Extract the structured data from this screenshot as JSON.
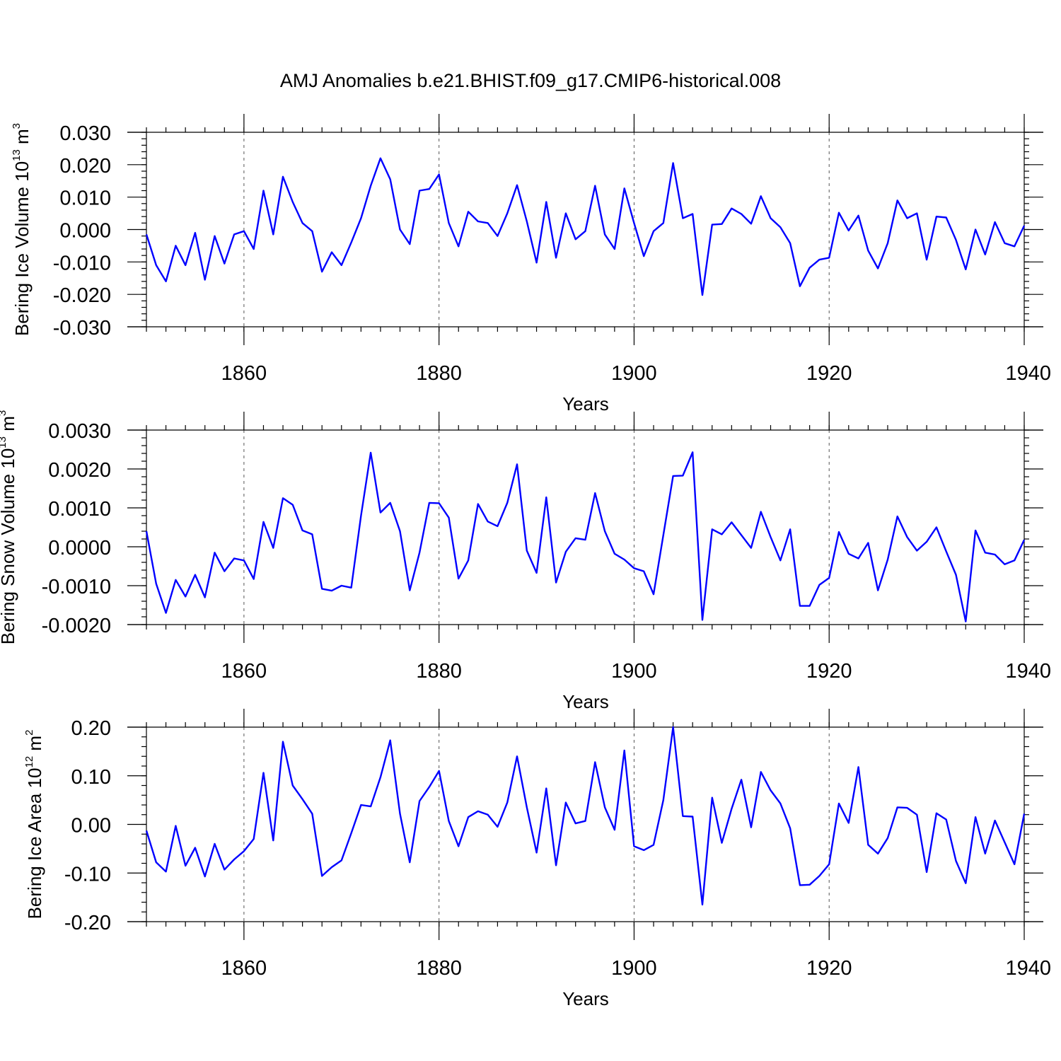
{
  "figure_title": "AMJ Anomalies b.e21.BHIST.f09_g17.CMIP6-historical.008",
  "line_color": "#0000ff",
  "chart_data": [
    {
      "type": "line",
      "title": "AMJ Anomalies b.e21.BHIST.f09_g17.CMIP6-historical.008",
      "ylabel_main": "Bering Ice Volume 10",
      "ylabel_exp": "13",
      "ylabel_unit": " m",
      "ylabel_unit_exp": "3",
      "xlabel": "Years",
      "xlim": [
        1850,
        1940
      ],
      "ylim": [
        -0.03,
        0.03
      ],
      "yticks": [
        -0.03,
        -0.02,
        -0.01,
        0.0,
        0.01,
        0.02,
        0.03
      ],
      "ytick_labels": [
        "-0.030",
        "-0.020",
        "-0.010",
        "0.000",
        "0.010",
        "0.020",
        "0.030"
      ],
      "yminor_step": 0.002,
      "xticks": [
        1860,
        1880,
        1900,
        1920,
        1940
      ],
      "xtick_labels": [
        "1860",
        "1880",
        "1900",
        "1920",
        "1940"
      ],
      "xminor_step": 2,
      "x_start": 1850,
      "x_step": 1,
      "values": [
        -0.0015,
        -0.011,
        -0.016,
        -0.005,
        -0.011,
        -0.001,
        -0.0155,
        -0.002,
        -0.0105,
        -0.0015,
        -0.0005,
        -0.006,
        0.012,
        -0.0015,
        0.0163,
        0.0085,
        0.002,
        -0.0005,
        -0.013,
        -0.007,
        -0.011,
        -0.004,
        0.0035,
        0.0135,
        0.022,
        0.0155,
        0.0,
        -0.0045,
        0.012,
        0.0125,
        0.017,
        0.002,
        -0.0052,
        0.0055,
        0.0025,
        0.002,
        -0.002,
        0.005,
        0.0137,
        0.0025,
        -0.0102,
        0.0085,
        -0.0087,
        0.005,
        -0.003,
        -0.0005,
        0.0135,
        -0.0015,
        -0.006,
        0.0127,
        0.002,
        -0.0082,
        -0.0005,
        0.002,
        0.0205,
        0.0035,
        0.0048,
        -0.0202,
        0.0015,
        0.0017,
        0.0065,
        0.0048,
        0.0018,
        0.0103,
        0.0035,
        0.0007,
        -0.0042,
        -0.0175,
        -0.0118,
        -0.0093,
        -0.0087,
        0.0052,
        -0.0003,
        0.0043,
        -0.0065,
        -0.012,
        -0.0042,
        0.009,
        0.0035,
        0.005,
        -0.0093,
        0.004,
        0.0037,
        -0.0032,
        -0.0123,
        0.0,
        -0.0077,
        0.0023,
        -0.0042,
        -0.0052,
        0.0012
      ]
    },
    {
      "type": "line",
      "ylabel_main": "Bering Snow Volume 10",
      "ylabel_exp": "13",
      "ylabel_unit": " m",
      "ylabel_unit_exp": "3",
      "xlabel": "Years",
      "xlim": [
        1850,
        1940
      ],
      "ylim": [
        -0.002,
        0.003
      ],
      "yticks": [
        -0.002,
        -0.001,
        0.0,
        0.001,
        0.002,
        0.003
      ],
      "ytick_labels": [
        "-0.0020",
        "-0.0010",
        "0.0000",
        "0.0010",
        "0.0020",
        "0.0030"
      ],
      "yminor_step": 0.0002,
      "xticks": [
        1860,
        1880,
        1900,
        1920,
        1940
      ],
      "xtick_labels": [
        "1860",
        "1880",
        "1900",
        "1920",
        "1940"
      ],
      "xminor_step": 2,
      "x_start": 1850,
      "x_step": 1,
      "values": [
        0.0004,
        -0.00095,
        -0.0017,
        -0.00085,
        -0.00128,
        -0.00072,
        -0.0013,
        -0.00015,
        -0.00063,
        -0.0003,
        -0.00035,
        -0.00083,
        0.00064,
        -3e-05,
        0.00125,
        0.00108,
        0.00042,
        0.00032,
        -0.00108,
        -0.00113,
        -0.001,
        -0.00105,
        0.0008,
        0.00242,
        0.00088,
        0.00113,
        0.0004,
        -0.00112,
        -0.00015,
        0.00113,
        0.00112,
        0.00075,
        -0.00082,
        -0.00035,
        0.0011,
        0.00065,
        0.00053,
        0.00113,
        0.00212,
        -0.0001,
        -0.00067,
        0.00127,
        -0.00092,
        -0.00013,
        0.00022,
        0.00018,
        0.00138,
        0.0004,
        -0.00018,
        -0.00033,
        -0.00055,
        -0.00063,
        -0.00122,
        0.0003,
        0.00182,
        0.00183,
        0.00243,
        -0.00188,
        0.00045,
        0.00032,
        0.00063,
        0.0003,
        -3e-05,
        0.0009,
        0.00025,
        -0.00035,
        0.00045,
        -0.00152,
        -0.00152,
        -0.00098,
        -0.0008,
        0.00038,
        -0.00018,
        -0.0003,
        0.0001,
        -0.00112,
        -0.00033,
        0.00078,
        0.00025,
        -0.0001,
        0.00013,
        0.0005,
        -0.00012,
        -0.00072,
        -0.00192,
        0.00042,
        -0.00015,
        -0.0002,
        -0.00045,
        -0.00035,
        0.00018
      ]
    },
    {
      "type": "line",
      "ylabel_main": "Bering Ice Area 10",
      "ylabel_exp": "12",
      "ylabel_unit": " m",
      "ylabel_unit_exp": "2",
      "xlabel": "Years",
      "xlim": [
        1850,
        1940
      ],
      "ylim": [
        -0.2,
        0.2
      ],
      "yticks": [
        -0.2,
        -0.1,
        0.0,
        0.1,
        0.2
      ],
      "ytick_labels": [
        "-0.20",
        "-0.10",
        "0.00",
        "0.10",
        "0.20"
      ],
      "yminor_step": 0.02,
      "xticks": [
        1860,
        1880,
        1900,
        1920,
        1940
      ],
      "xtick_labels": [
        "1860",
        "1880",
        "1900",
        "1920",
        "1940"
      ],
      "xminor_step": 2,
      "x_start": 1850,
      "x_step": 1,
      "values": [
        -0.013,
        -0.078,
        -0.097,
        -0.003,
        -0.085,
        -0.048,
        -0.107,
        -0.04,
        -0.093,
        -0.072,
        -0.055,
        -0.03,
        0.106,
        -0.033,
        0.17,
        0.08,
        0.052,
        0.022,
        -0.106,
        -0.088,
        -0.074,
        -0.018,
        0.04,
        0.037,
        0.097,
        0.173,
        0.022,
        -0.078,
        0.048,
        0.077,
        0.11,
        0.007,
        -0.045,
        0.015,
        0.027,
        0.02,
        -0.005,
        0.045,
        0.14,
        0.035,
        -0.058,
        0.074,
        -0.084,
        0.045,
        0.002,
        0.007,
        0.128,
        0.035,
        -0.011,
        0.152,
        -0.045,
        -0.053,
        -0.042,
        0.05,
        0.2,
        0.017,
        0.016,
        -0.165,
        0.055,
        -0.038,
        0.032,
        0.092,
        -0.006,
        0.108,
        0.07,
        0.043,
        -0.008,
        -0.125,
        -0.124,
        -0.106,
        -0.082,
        0.043,
        0.003,
        0.118,
        -0.042,
        -0.06,
        -0.028,
        0.035,
        0.034,
        0.02,
        -0.098,
        0.023,
        0.01,
        -0.075,
        -0.121,
        0.015,
        -0.06,
        0.008,
        -0.037,
        -0.082,
        0.022
      ]
    }
  ]
}
